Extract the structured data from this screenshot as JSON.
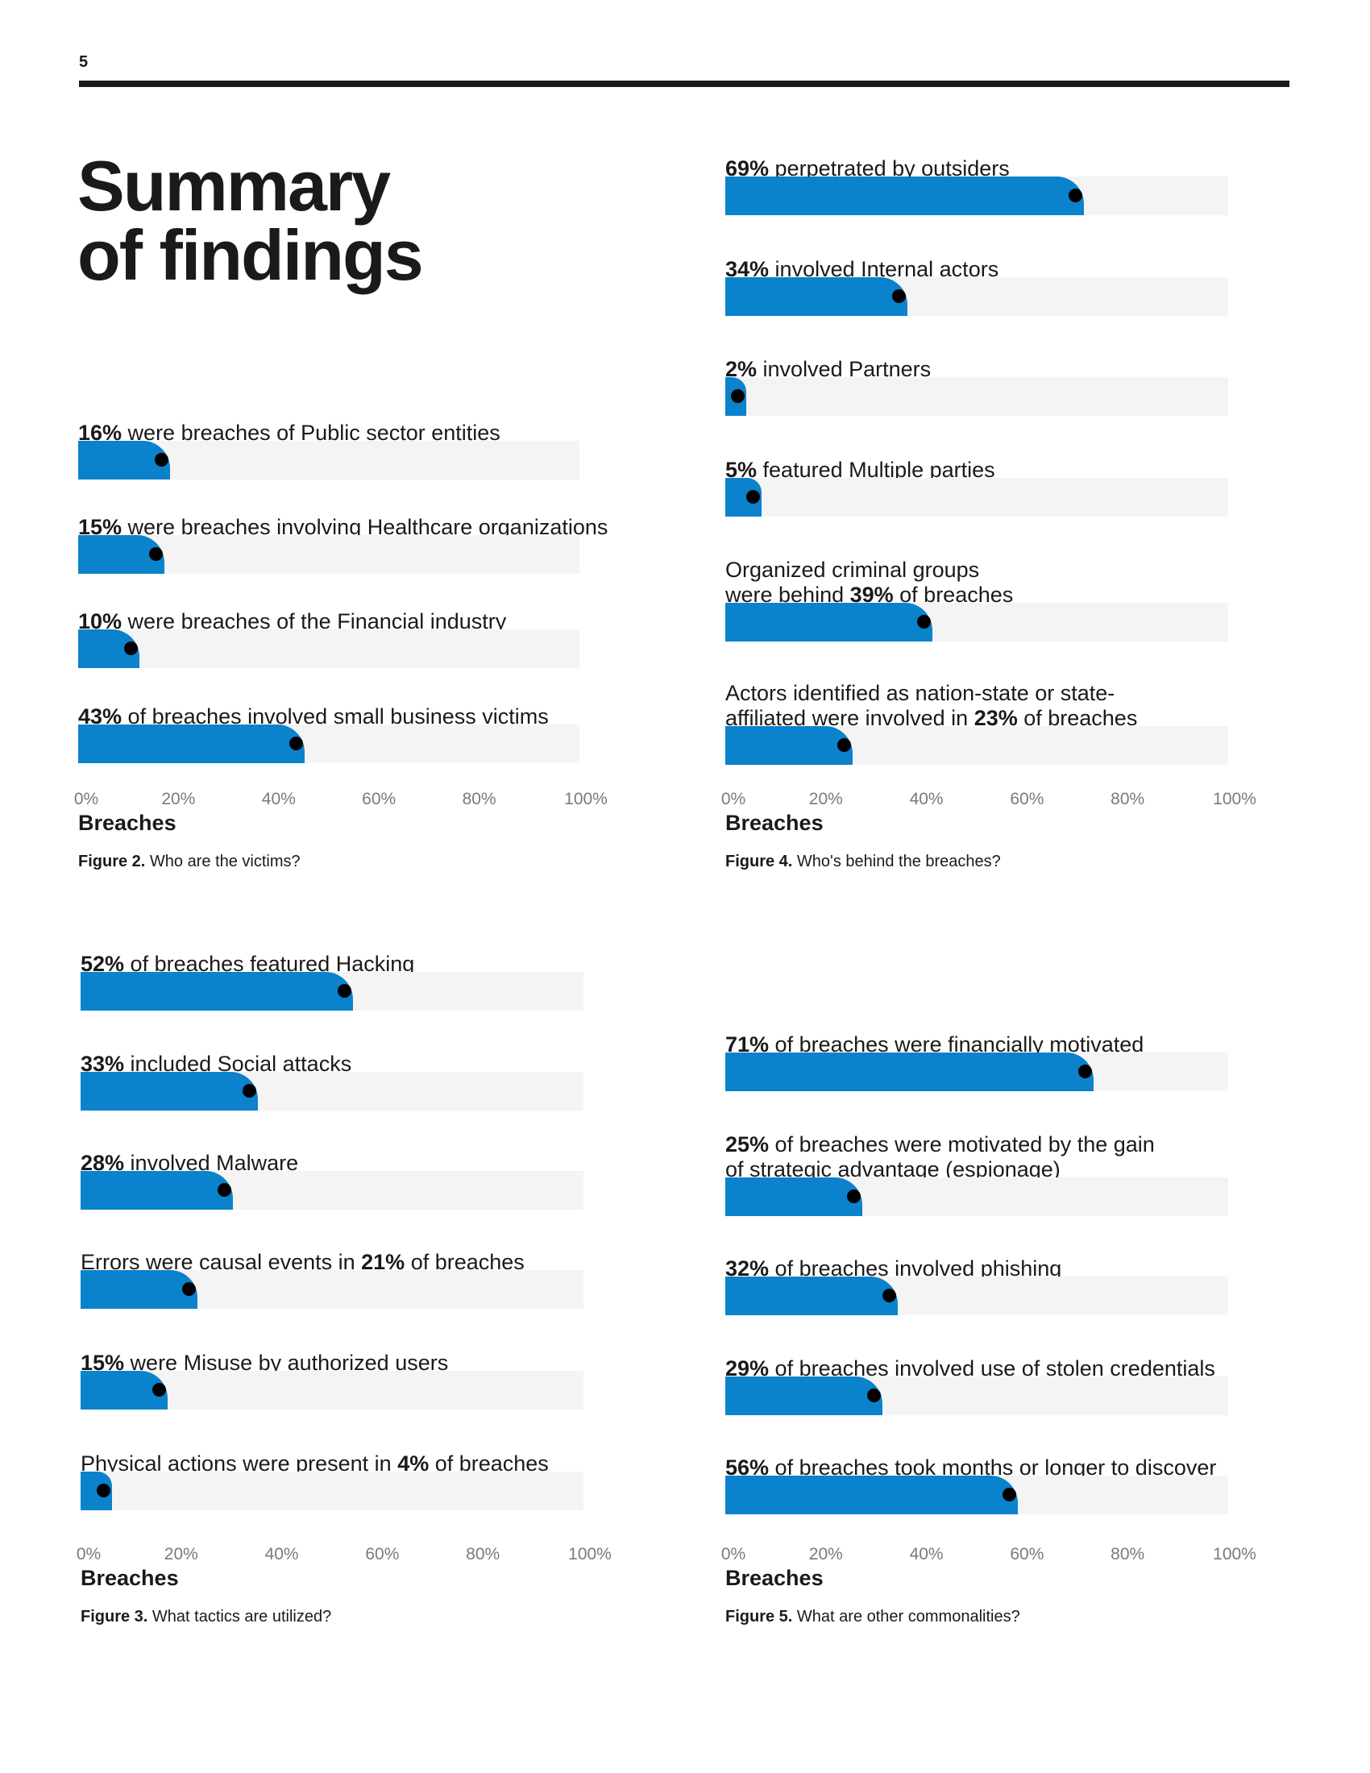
{
  "page": {
    "number": "5",
    "title_line1": "Summary",
    "title_line2": "of findings"
  },
  "colors": {
    "accent": "#0a82cc",
    "track": "#f4f4f4",
    "marker": "#000000"
  },
  "chart_data": [
    {
      "type": "bar",
      "id": "fig2",
      "xlabel": "Breaches",
      "xlim": [
        0,
        100
      ],
      "ticks": [
        "0%",
        "20%",
        "40%",
        "60%",
        "80%",
        "100%"
      ],
      "caption_prefix": "Figure 2.",
      "caption": "Who are the victims?",
      "bars": [
        {
          "value": 16,
          "pre": "",
          "pct": "16%",
          "post": " were breaches of Public sector entities"
        },
        {
          "value": 15,
          "pre": "",
          "pct": "15%",
          "post": " were breaches involving Healthcare organizations"
        },
        {
          "value": 10,
          "pre": "",
          "pct": "10%",
          "post": " were breaches of the Financial industry"
        },
        {
          "value": 43,
          "pre": "",
          "pct": "43%",
          "post": " of breaches involved small business victims"
        }
      ]
    },
    {
      "type": "bar",
      "id": "fig4",
      "xlabel": "Breaches",
      "xlim": [
        0,
        100
      ],
      "ticks": [
        "0%",
        "20%",
        "40%",
        "60%",
        "80%",
        "100%"
      ],
      "caption_prefix": "Figure 4.",
      "caption": "Who's behind the breaches?",
      "bars": [
        {
          "value": 69,
          "pre": "",
          "pct": "69%",
          "post": " perpetrated by outsiders"
        },
        {
          "value": 34,
          "pre": "",
          "pct": "34%",
          "post": " involved Internal actors"
        },
        {
          "value": 2,
          "pre": "",
          "pct": "2%",
          "post": " involved Partners"
        },
        {
          "value": 5,
          "pre": "",
          "pct": "5%",
          "post": " featured Multiple parties"
        },
        {
          "value": 39,
          "pre": "Organized criminal groups\nwere behind ",
          "pct": "39%",
          "post": " of breaches"
        },
        {
          "value": 23,
          "pre": "Actors identified as nation-state or state-\naffiliated were involved in ",
          "pct": "23%",
          "post": " of breaches"
        }
      ]
    },
    {
      "type": "bar",
      "id": "fig3",
      "xlabel": "Breaches",
      "xlim": [
        0,
        100
      ],
      "ticks": [
        "0%",
        "20%",
        "40%",
        "60%",
        "80%",
        "100%"
      ],
      "caption_prefix": "Figure 3.",
      "caption": "What tactics are utilized?",
      "bars": [
        {
          "value": 52,
          "pre": "",
          "pct": "52%",
          "post": " of breaches featured Hacking"
        },
        {
          "value": 33,
          "pre": "",
          "pct": "33%",
          "post": " included Social attacks"
        },
        {
          "value": 28,
          "pre": "",
          "pct": "28%",
          "post": " involved Malware"
        },
        {
          "value": 21,
          "pre": "Errors were causal events in ",
          "pct": "21%",
          "post": " of breaches"
        },
        {
          "value": 15,
          "pre": "",
          "pct": "15%",
          "post": " were Misuse by authorized users"
        },
        {
          "value": 4,
          "pre": "Physical actions were present in ",
          "pct": "4%",
          "post": " of breaches"
        }
      ]
    },
    {
      "type": "bar",
      "id": "fig5",
      "xlabel": "Breaches",
      "xlim": [
        0,
        100
      ],
      "ticks": [
        "0%",
        "20%",
        "40%",
        "60%",
        "80%",
        "100%"
      ],
      "caption_prefix": "Figure 5.",
      "caption": "What are other commonalities?",
      "bars": [
        {
          "value": 71,
          "pre": "",
          "pct": "71%",
          "post": " of breaches were financially motivated"
        },
        {
          "value": 25,
          "pre": "",
          "pct": "25%",
          "post": " of breaches were motivated by the gain\nof strategic advantage (espionage)"
        },
        {
          "value": 32,
          "pre": "",
          "pct": "32%",
          "post": " of breaches involved phishing"
        },
        {
          "value": 29,
          "pre": "",
          "pct": "29%",
          "post": " of breaches involved use of stolen credentials"
        },
        {
          "value": 56,
          "pre": "",
          "pct": "56%",
          "post": " of breaches took months or longer to discover"
        }
      ]
    }
  ]
}
